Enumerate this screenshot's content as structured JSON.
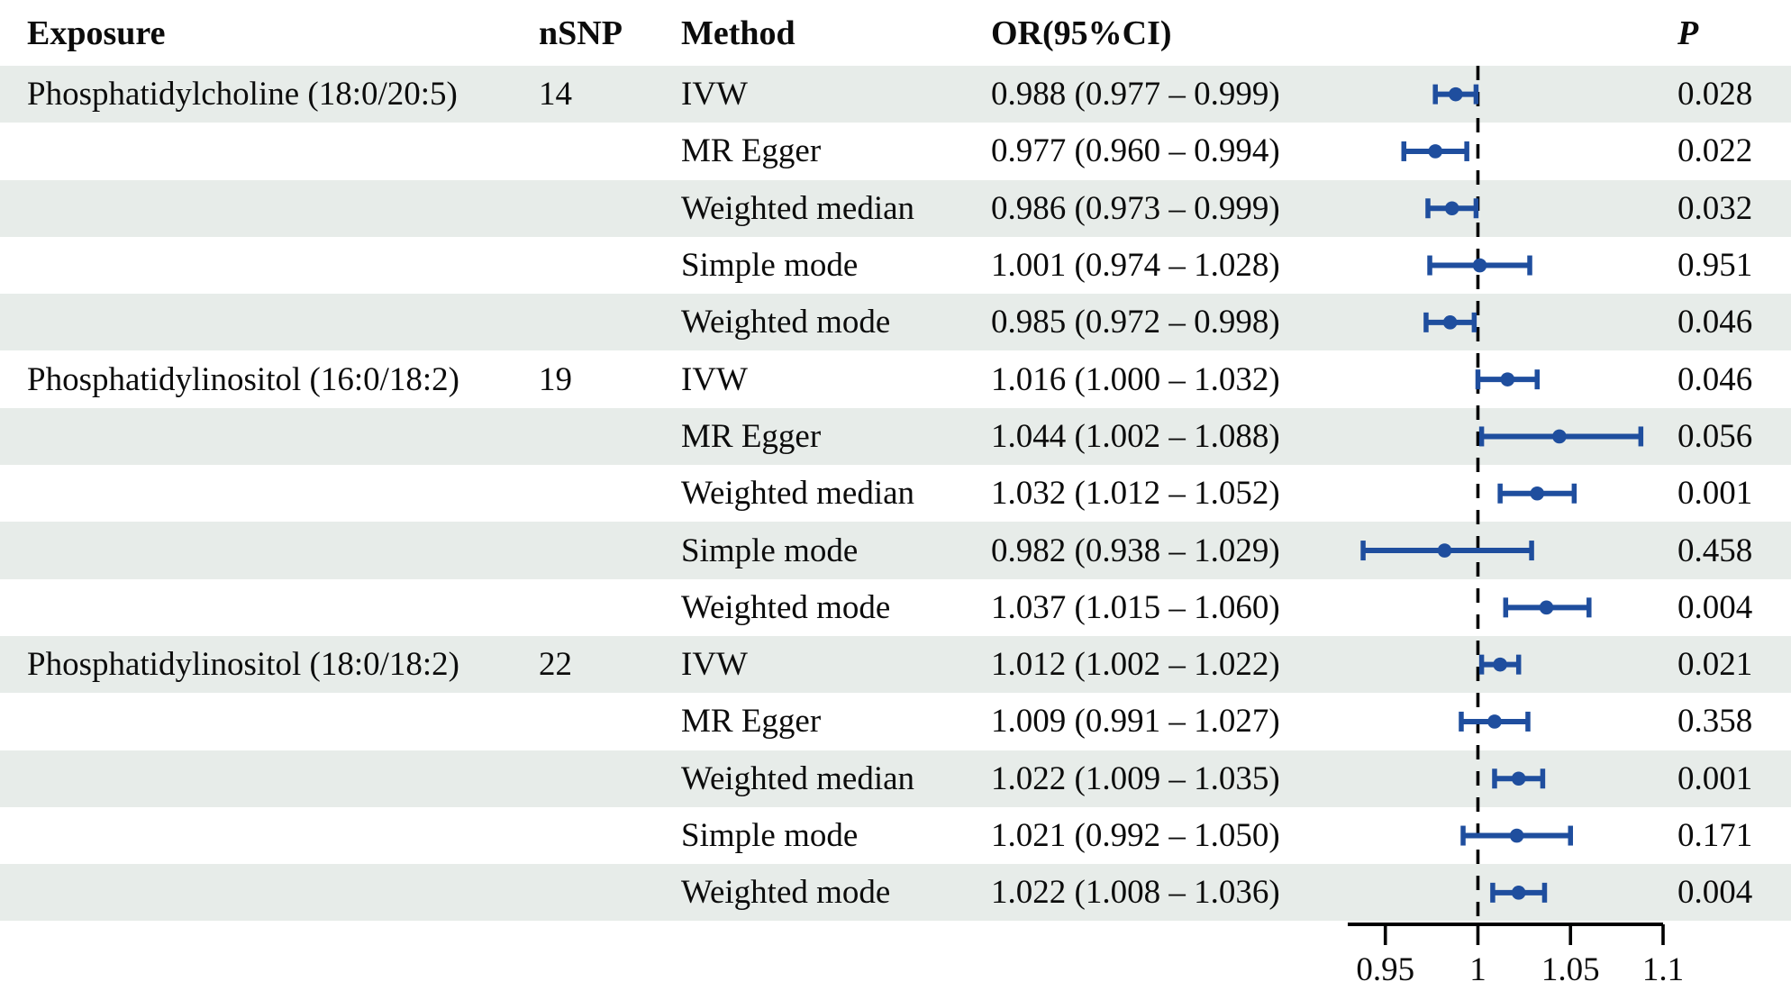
{
  "table": {
    "headers": {
      "exposure": "Exposure",
      "nsnp": "nSNP",
      "method": "Method",
      "or_ci": "OR(95%CI)",
      "p": "P"
    },
    "rows": [
      {
        "exposure": "Phosphatidylcholine (18:0/20:5)",
        "nsnp": "14",
        "method": "IVW",
        "or_ci": "0.988 (0.977 – 0.999)",
        "p": "0.028",
        "shaded": true
      },
      {
        "exposure": "",
        "nsnp": "",
        "method": "MR Egger",
        "or_ci": "0.977 (0.960 – 0.994)",
        "p": "0.022",
        "shaded": false
      },
      {
        "exposure": "",
        "nsnp": "",
        "method": "Weighted median",
        "or_ci": "0.986 (0.973 – 0.999)",
        "p": "0.032",
        "shaded": true
      },
      {
        "exposure": "",
        "nsnp": "",
        "method": "Simple mode",
        "or_ci": "1.001 (0.974 – 1.028)",
        "p": "0.951",
        "shaded": false
      },
      {
        "exposure": "",
        "nsnp": "",
        "method": "Weighted mode",
        "or_ci": "0.985 (0.972 – 0.998)",
        "p": "0.046",
        "shaded": true
      },
      {
        "exposure": "Phosphatidylinositol (16:0/18:2)",
        "nsnp": "19",
        "method": "IVW",
        "or_ci": "1.016 (1.000 – 1.032)",
        "p": "0.046",
        "shaded": false
      },
      {
        "exposure": "",
        "nsnp": "",
        "method": "MR Egger",
        "or_ci": "1.044 (1.002 – 1.088)",
        "p": "0.056",
        "shaded": true
      },
      {
        "exposure": "",
        "nsnp": "",
        "method": "Weighted median",
        "or_ci": "1.032 (1.012 – 1.052)",
        "p": "0.001",
        "shaded": false
      },
      {
        "exposure": "",
        "nsnp": "",
        "method": "Simple mode",
        "or_ci": "0.982 (0.938 – 1.029)",
        "p": "0.458",
        "shaded": true
      },
      {
        "exposure": "",
        "nsnp": "",
        "method": "Weighted mode",
        "or_ci": "1.037 (1.015 – 1.060)",
        "p": "0.004",
        "shaded": false
      },
      {
        "exposure": "Phosphatidylinositol (18:0/18:2)",
        "nsnp": "22",
        "method": "IVW",
        "or_ci": "1.012 (1.002 – 1.022)",
        "p": "0.021",
        "shaded": true
      },
      {
        "exposure": "",
        "nsnp": "",
        "method": "MR Egger",
        "or_ci": "1.009 (0.991 – 1.027)",
        "p": "0.358",
        "shaded": false
      },
      {
        "exposure": "",
        "nsnp": "",
        "method": "Weighted median",
        "or_ci": "1.022 (1.009 – 1.035)",
        "p": "0.001",
        "shaded": true
      },
      {
        "exposure": "",
        "nsnp": "",
        "method": "Simple mode",
        "or_ci": "1.021 (0.992 – 1.050)",
        "p": "0.171",
        "shaded": false
      },
      {
        "exposure": "",
        "nsnp": "",
        "method": "Weighted mode",
        "or_ci": "1.022 (1.008 – 1.036)",
        "p": "0.004",
        "shaded": true
      }
    ]
  },
  "chart_data": {
    "type": "forest",
    "title": "",
    "xlabel": "",
    "xlim": [
      0.9297,
      1.1
    ],
    "ref_line": 1,
    "x_tick_values": [
      0.95,
      1,
      1.05,
      1.1
    ],
    "x_tick_labels": [
      "0.95",
      "1",
      "1.05",
      "1.1"
    ],
    "marker_color": "#1f4e9e",
    "ref_line_color": "#000000",
    "stripe_color": "#e7ece9",
    "rows": [
      {
        "exposure": "Phosphatidylcholine (18:0/20:5)",
        "method": "IVW",
        "or": 0.988,
        "lo": 0.977,
        "hi": 0.999,
        "p": 0.028
      },
      {
        "exposure": "Phosphatidylcholine (18:0/20:5)",
        "method": "MR Egger",
        "or": 0.977,
        "lo": 0.96,
        "hi": 0.994,
        "p": 0.022
      },
      {
        "exposure": "Phosphatidylcholine (18:0/20:5)",
        "method": "Weighted median",
        "or": 0.986,
        "lo": 0.973,
        "hi": 0.999,
        "p": 0.032
      },
      {
        "exposure": "Phosphatidylcholine (18:0/20:5)",
        "method": "Simple mode",
        "or": 1.001,
        "lo": 0.974,
        "hi": 1.028,
        "p": 0.951
      },
      {
        "exposure": "Phosphatidylcholine (18:0/20:5)",
        "method": "Weighted mode",
        "or": 0.985,
        "lo": 0.972,
        "hi": 0.998,
        "p": 0.046
      },
      {
        "exposure": "Phosphatidylinositol (16:0/18:2)",
        "method": "IVW",
        "or": 1.016,
        "lo": 1.0,
        "hi": 1.032,
        "p": 0.046
      },
      {
        "exposure": "Phosphatidylinositol (16:0/18:2)",
        "method": "MR Egger",
        "or": 1.044,
        "lo": 1.002,
        "hi": 1.088,
        "p": 0.056
      },
      {
        "exposure": "Phosphatidylinositol (16:0/18:2)",
        "method": "Weighted median",
        "or": 1.032,
        "lo": 1.012,
        "hi": 1.052,
        "p": 0.001
      },
      {
        "exposure": "Phosphatidylinositol (16:0/18:2)",
        "method": "Simple mode",
        "or": 0.982,
        "lo": 0.938,
        "hi": 1.029,
        "p": 0.458
      },
      {
        "exposure": "Phosphatidylinositol (16:0/18:2)",
        "method": "Weighted mode",
        "or": 1.037,
        "lo": 1.015,
        "hi": 1.06,
        "p": 0.004
      },
      {
        "exposure": "Phosphatidylinositol (18:0/18:2)",
        "method": "IVW",
        "or": 1.012,
        "lo": 1.002,
        "hi": 1.022,
        "p": 0.021
      },
      {
        "exposure": "Phosphatidylinositol (18:0/18:2)",
        "method": "MR Egger",
        "or": 1.009,
        "lo": 0.991,
        "hi": 1.027,
        "p": 0.358
      },
      {
        "exposure": "Phosphatidylinositol (18:0/18:2)",
        "method": "Weighted median",
        "or": 1.022,
        "lo": 1.009,
        "hi": 1.035,
        "p": 0.001
      },
      {
        "exposure": "Phosphatidylinositol (18:0/18:2)",
        "method": "Simple mode",
        "or": 1.021,
        "lo": 0.992,
        "hi": 1.05,
        "p": 0.171
      },
      {
        "exposure": "Phosphatidylinositol (18:0/18:2)",
        "method": "Weighted mode",
        "or": 1.022,
        "lo": 1.008,
        "hi": 1.036,
        "p": 0.004
      }
    ]
  }
}
